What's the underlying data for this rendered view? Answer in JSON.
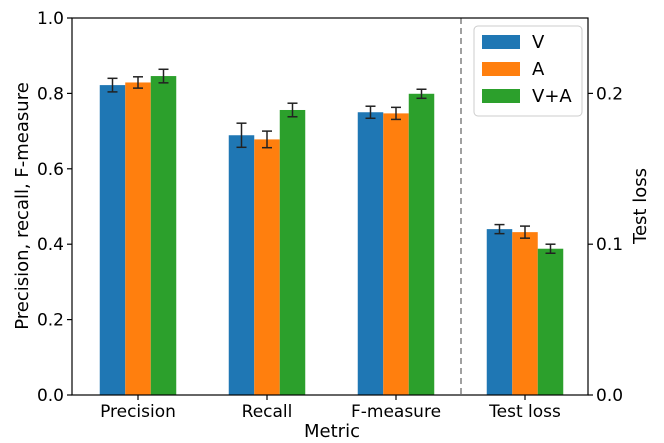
{
  "chart_data": {
    "type": "bar",
    "xlabel": "Metric",
    "ylabel": "Precision, recall, F-measure",
    "ylabel_right": "Test loss",
    "ylim": [
      0,
      1.0
    ],
    "ylim_right": [
      0,
      0.25
    ],
    "yticks": [
      "0.0",
      "0.2",
      "0.4",
      "0.6",
      "0.8",
      "1.0"
    ],
    "yticks_right": [
      "0.0",
      "0.1",
      "0.2"
    ],
    "categories": [
      "Precision",
      "Recall",
      "F-measure",
      "Test loss"
    ],
    "right_axis_categories": [
      "Test loss"
    ],
    "legend_position": "top-right",
    "separator": "dashed vertical line between F-measure and Test loss",
    "series": [
      {
        "name": "V",
        "color": "#1f77b4",
        "values": [
          0.822,
          0.689,
          0.75,
          0.11
        ],
        "errors": [
          0.018,
          0.032,
          0.016,
          0.003
        ]
      },
      {
        "name": "A",
        "color": "#ff7f0e",
        "values": [
          0.829,
          0.678,
          0.747,
          0.108
        ],
        "errors": [
          0.015,
          0.022,
          0.016,
          0.004
        ]
      },
      {
        "name": "V+A",
        "color": "#2ca02c",
        "values": [
          0.846,
          0.756,
          0.799,
          0.097
        ],
        "errors": [
          0.018,
          0.018,
          0.012,
          0.003
        ]
      }
    ]
  }
}
